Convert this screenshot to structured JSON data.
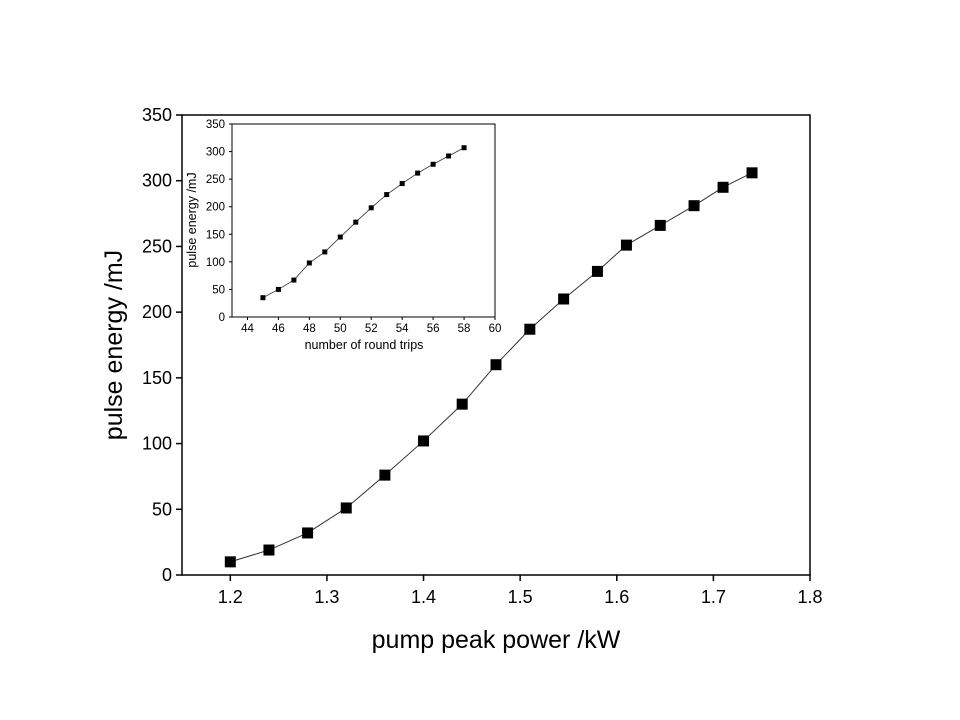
{
  "chart_data": [
    {
      "type": "line",
      "markers": "filled-square",
      "xlabel": "pump peak power /kW",
      "ylabel": "pulse energy /mJ",
      "xlim": [
        1.15,
        1.8
      ],
      "ylim": [
        0,
        350
      ],
      "xticks": [
        "1.2",
        "1.3",
        "1.4",
        "1.5",
        "1.6",
        "1.7",
        "1.8"
      ],
      "yticks": [
        "0",
        "50",
        "100",
        "150",
        "200",
        "250",
        "300",
        "350"
      ],
      "grid": false,
      "series": [
        {
          "x": [
            1.2,
            1.24,
            1.28,
            1.32,
            1.36,
            1.4,
            1.44,
            1.475,
            1.51,
            1.545,
            1.58,
            1.61,
            1.645,
            1.68,
            1.71,
            1.74
          ],
          "y": [
            10,
            19,
            32,
            51,
            76,
            102,
            130,
            160,
            187,
            210,
            231,
            251,
            266,
            281,
            295,
            306
          ]
        }
      ]
    },
    {
      "type": "line",
      "markers": "filled-square",
      "position": "inset top-left",
      "xlabel": "number of round trips",
      "ylabel": "pulse energy /mJ",
      "xlim": [
        43,
        60
      ],
      "ylim": [
        0,
        350
      ],
      "xticks": [
        "44",
        "46",
        "48",
        "50",
        "52",
        "54",
        "56",
        "58",
        "60"
      ],
      "yticks": [
        "0",
        "50",
        "100",
        "150",
        "200",
        "250",
        "300",
        "350"
      ],
      "grid": false,
      "series": [
        {
          "x": [
            45,
            46,
            47,
            48,
            49,
            50,
            51,
            52,
            53,
            54,
            55,
            56,
            57,
            58
          ],
          "y": [
            35,
            50,
            67,
            98,
            118,
            145,
            172,
            198,
            222,
            242,
            261,
            277,
            292,
            307
          ]
        }
      ]
    }
  ]
}
